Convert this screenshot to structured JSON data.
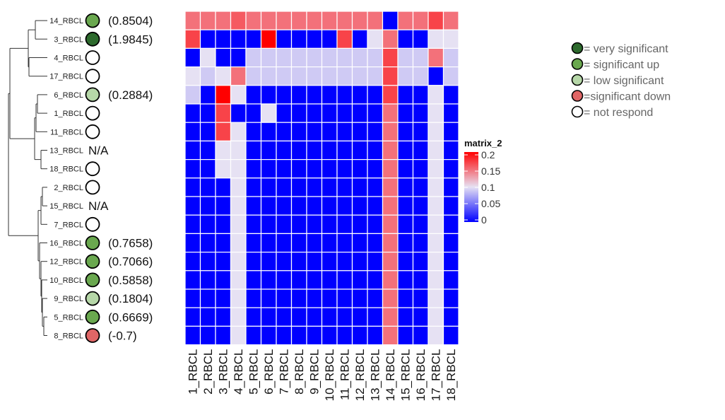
{
  "chart_data": {
    "type": "heatmap",
    "colorbar_title": "matrix_2",
    "colorbar_ticks": [
      "0.2",
      "0.15",
      "0.1",
      "0.05",
      "0"
    ],
    "color_scale": [
      {
        "value": 0,
        "color": "#0000ff"
      },
      {
        "value": 0.1,
        "color": "#e6e1f3"
      },
      {
        "value": 0.2,
        "color": "#ff0000"
      }
    ],
    "rows": [
      {
        "label": "14_RBCL",
        "status": "significant up",
        "value_text": "(0.8504)"
      },
      {
        "label": "3_RBCL",
        "status": "very significant",
        "value_text": "(1.9845)"
      },
      {
        "label": "4_RBCL",
        "status": "not respond",
        "value_text": ""
      },
      {
        "label": "17_RBCL",
        "status": "not respond",
        "value_text": ""
      },
      {
        "label": "6_RBCL",
        "status": "low significant",
        "value_text": "(0.2884)"
      },
      {
        "label": "1_RBCL",
        "status": "not respond",
        "value_text": ""
      },
      {
        "label": "11_RBCL",
        "status": "not respond",
        "value_text": ""
      },
      {
        "label": "13_RBCL",
        "status": "none",
        "value_text": "N/A"
      },
      {
        "label": "18_RBCL",
        "status": "not respond",
        "value_text": ""
      },
      {
        "label": "2_RBCL",
        "status": "not respond",
        "value_text": ""
      },
      {
        "label": "15_RBCL",
        "status": "none",
        "value_text": "N/A"
      },
      {
        "label": "7_RBCL",
        "status": "not respond",
        "value_text": ""
      },
      {
        "label": "16_RBCL",
        "status": "significant up",
        "value_text": "(0.7658)"
      },
      {
        "label": "12_RBCL",
        "status": "significant up",
        "value_text": "(0.7066)"
      },
      {
        "label": "10_RBCL",
        "status": "significant up",
        "value_text": "(0.5858)"
      },
      {
        "label": "9_RBCL",
        "status": "low significant",
        "value_text": "(0.1804)"
      },
      {
        "label": "5_RBCL",
        "status": "significant up",
        "value_text": "(0.6669)"
      },
      {
        "label": "8_RBCL",
        "status": "significant down",
        "value_text": "(-0.7)"
      }
    ],
    "columns": [
      "1_RBCL",
      "2_RBCL",
      "3_RBCL",
      "4_RBCL",
      "5_RBCL",
      "6_RBCL",
      "7_RBCL",
      "8_RBCL",
      "9_RBCL",
      "10_RBCL",
      "11_RBCL",
      "12_RBCL",
      "13_RBCL",
      "14_RBCL",
      "15_RBCL",
      "16_RBCL",
      "17_RBCL",
      "18_RBCL"
    ],
    "matrix": [
      [
        0.15,
        0.15,
        0.15,
        0.16,
        0.15,
        0.15,
        0.15,
        0.15,
        0.15,
        0.15,
        0.15,
        0.15,
        0.15,
        0,
        0.15,
        0.15,
        0.17,
        0.15
      ],
      [
        0.17,
        0,
        0,
        0,
        0,
        0.2,
        0,
        0,
        0,
        0,
        0.17,
        0,
        0.1,
        0.15,
        0,
        0,
        0.1,
        0.1
      ],
      [
        0,
        0.1,
        0,
        0,
        0.09,
        0.09,
        0.09,
        0.09,
        0.09,
        0.09,
        0.09,
        0.09,
        0.09,
        0.17,
        0.09,
        0.09,
        0.15,
        0.09
      ],
      [
        0.1,
        0.09,
        0.1,
        0.15,
        0.09,
        0.09,
        0.09,
        0.09,
        0.09,
        0.09,
        0.09,
        0.09,
        0.09,
        0.17,
        0.09,
        0.09,
        0,
        0.09
      ],
      [
        0.09,
        0,
        0.2,
        0.1,
        0,
        0,
        0,
        0,
        0,
        0,
        0,
        0,
        0,
        0.17,
        0,
        0,
        0.1,
        0
      ],
      [
        0,
        0,
        0.17,
        0,
        0,
        0.1,
        0,
        0,
        0,
        0,
        0,
        0,
        0,
        0.15,
        0,
        0,
        0.1,
        0
      ],
      [
        0,
        0,
        0.17,
        0.1,
        0,
        0,
        0,
        0,
        0,
        0,
        0,
        0,
        0,
        0.15,
        0,
        0,
        0.1,
        0
      ],
      [
        0,
        0,
        0.1,
        0.1,
        0,
        0,
        0,
        0,
        0,
        0,
        0,
        0,
        0,
        0.15,
        0,
        0,
        0.1,
        0
      ],
      [
        0,
        0,
        0.1,
        0.1,
        0,
        0,
        0,
        0,
        0,
        0,
        0,
        0,
        0,
        0.15,
        0,
        0,
        0.1,
        0
      ],
      [
        0,
        0,
        0,
        0.1,
        0,
        0,
        0,
        0,
        0,
        0,
        0,
        0,
        0,
        0.15,
        0,
        0,
        0.1,
        0
      ],
      [
        0,
        0,
        0,
        0.1,
        0,
        0,
        0,
        0,
        0,
        0,
        0,
        0,
        0,
        0.15,
        0,
        0,
        0.1,
        0
      ],
      [
        0,
        0,
        0,
        0.1,
        0,
        0,
        0,
        0,
        0,
        0,
        0,
        0,
        0,
        0.15,
        0,
        0,
        0.1,
        0
      ],
      [
        0,
        0,
        0,
        0.1,
        0,
        0,
        0,
        0,
        0,
        0,
        0,
        0,
        0,
        0.15,
        0,
        0,
        0.1,
        0
      ],
      [
        0,
        0,
        0,
        0.1,
        0,
        0,
        0,
        0,
        0,
        0,
        0,
        0,
        0,
        0.15,
        0,
        0,
        0.1,
        0
      ],
      [
        0,
        0,
        0,
        0.1,
        0,
        0,
        0,
        0,
        0,
        0,
        0,
        0,
        0,
        0.15,
        0,
        0,
        0.1,
        0
      ],
      [
        0,
        0,
        0,
        0.1,
        0,
        0,
        0,
        0,
        0,
        0,
        0,
        0,
        0,
        0.15,
        0,
        0,
        0.1,
        0
      ],
      [
        0,
        0,
        0,
        0.1,
        0,
        0,
        0,
        0,
        0,
        0,
        0,
        0,
        0,
        0.15,
        0,
        0,
        0.1,
        0
      ],
      [
        0,
        0,
        0,
        0.1,
        0,
        0,
        0,
        0,
        0,
        0,
        0,
        0,
        0,
        0.15,
        0,
        0,
        0.1,
        0
      ]
    ]
  },
  "status_colors": {
    "very significant": "#2d6a2d",
    "significant up": "#6aa84f",
    "low significant": "#b6d7a8",
    "significant down": "#e06666",
    "not respond": "#ffffff"
  },
  "legend": [
    {
      "status": "very significant",
      "text": "= very significant"
    },
    {
      "status": "significant up",
      "text": "= significant up"
    },
    {
      "status": "low significant",
      "text": "= low significant"
    },
    {
      "status": "significant down",
      "text": "=significant down"
    },
    {
      "status": "not respond",
      "text": "= not respond"
    }
  ]
}
